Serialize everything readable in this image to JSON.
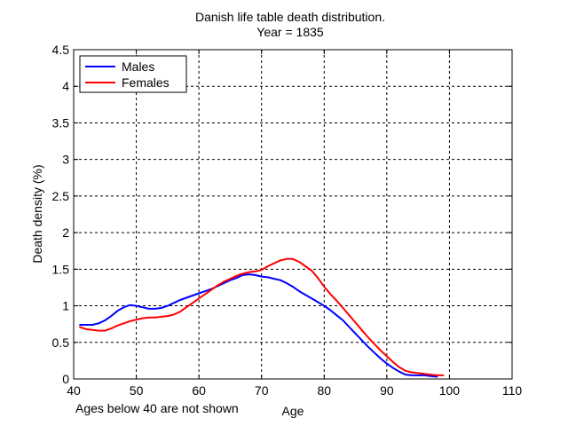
{
  "chart_data": {
    "type": "line",
    "title": "Danish life table death distribution.",
    "subtitle": "Year = 1835",
    "xlabel": "Age",
    "ylabel": "Death density (%)",
    "note": "Ages below 40 are not shown",
    "xlim": [
      40,
      110
    ],
    "ylim": [
      0,
      4.5
    ],
    "xticks": [
      "40",
      "50",
      "60",
      "70",
      "80",
      "90",
      "100",
      "110"
    ],
    "yticks": [
      "0",
      "0.5",
      "1",
      "1.5",
      "2",
      "2.5",
      "3",
      "3.5",
      "4",
      "4.5"
    ],
    "grid": true,
    "legend_position": "top-left",
    "series": [
      {
        "name": "Males",
        "color": "#0000ff",
        "x": [
          41,
          42,
          43,
          44,
          45,
          46,
          47,
          48,
          49,
          50,
          51,
          52,
          53,
          54,
          55,
          56,
          57,
          58,
          59,
          60,
          61,
          62,
          63,
          64,
          65,
          66,
          67,
          68,
          69,
          70,
          71,
          72,
          73,
          74,
          75,
          76,
          77,
          78,
          79,
          80,
          81,
          82,
          83,
          84,
          85,
          86,
          87,
          88,
          89,
          90,
          91,
          92,
          93,
          94,
          95,
          96,
          97,
          98
        ],
        "values": [
          0.74,
          0.74,
          0.74,
          0.76,
          0.8,
          0.86,
          0.93,
          0.98,
          1.01,
          1.0,
          0.98,
          0.96,
          0.96,
          0.97,
          1.0,
          1.04,
          1.08,
          1.11,
          1.14,
          1.17,
          1.2,
          1.23,
          1.27,
          1.31,
          1.35,
          1.38,
          1.42,
          1.43,
          1.42,
          1.4,
          1.39,
          1.37,
          1.35,
          1.31,
          1.26,
          1.2,
          1.15,
          1.1,
          1.05,
          1.0,
          0.94,
          0.87,
          0.8,
          0.71,
          0.62,
          0.53,
          0.44,
          0.36,
          0.28,
          0.21,
          0.15,
          0.1,
          0.06,
          0.05,
          0.05,
          0.05,
          0.04,
          0.03
        ]
      },
      {
        "name": "Females",
        "color": "#ff0000",
        "x": [
          41,
          42,
          43,
          44,
          45,
          46,
          47,
          48,
          49,
          50,
          51,
          52,
          53,
          54,
          55,
          56,
          57,
          58,
          59,
          60,
          61,
          62,
          63,
          64,
          65,
          66,
          67,
          68,
          69,
          70,
          71,
          72,
          73,
          74,
          75,
          76,
          77,
          78,
          79,
          80,
          81,
          82,
          83,
          84,
          85,
          86,
          87,
          88,
          89,
          90,
          91,
          92,
          93,
          94,
          95,
          96,
          97,
          98,
          99
        ],
        "values": [
          0.71,
          0.68,
          0.67,
          0.66,
          0.66,
          0.69,
          0.73,
          0.76,
          0.79,
          0.81,
          0.83,
          0.84,
          0.84,
          0.85,
          0.86,
          0.88,
          0.92,
          0.98,
          1.04,
          1.1,
          1.16,
          1.22,
          1.28,
          1.33,
          1.37,
          1.41,
          1.44,
          1.46,
          1.47,
          1.49,
          1.54,
          1.58,
          1.62,
          1.64,
          1.64,
          1.6,
          1.54,
          1.48,
          1.38,
          1.26,
          1.16,
          1.07,
          0.97,
          0.87,
          0.77,
          0.67,
          0.57,
          0.48,
          0.39,
          0.31,
          0.23,
          0.16,
          0.11,
          0.09,
          0.08,
          0.07,
          0.06,
          0.05,
          0.05
        ]
      }
    ]
  }
}
